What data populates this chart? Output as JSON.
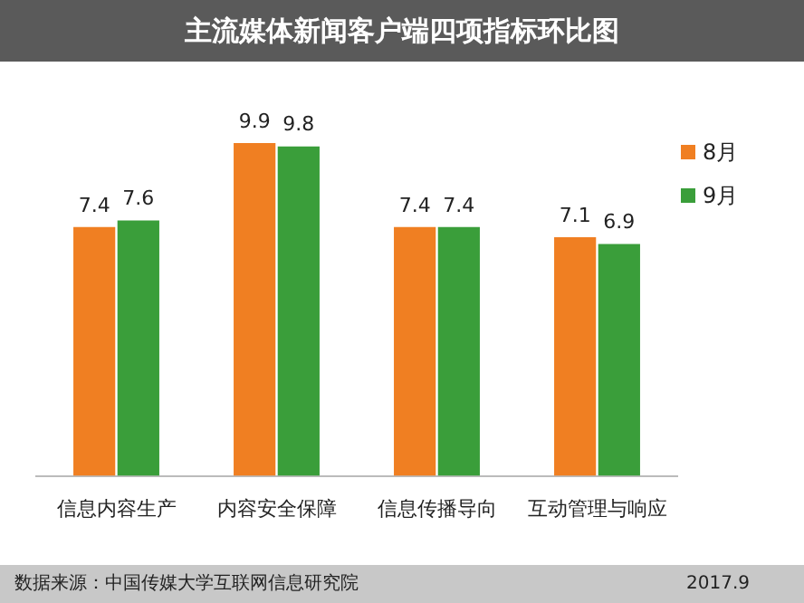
{
  "chart_data": {
    "type": "bar",
    "title": "主流媒体新闻客户端四项指标环比图",
    "categories": [
      "信息内容生产",
      "内容安全保障",
      "信息传播导向",
      "互动管理与响应"
    ],
    "series": [
      {
        "name": "8月",
        "color": "#f07f22",
        "values": [
          7.4,
          9.9,
          7.4,
          7.1
        ]
      },
      {
        "name": "9月",
        "color": "#3a9e3a",
        "values": [
          7.6,
          9.8,
          7.4,
          6.9
        ]
      }
    ],
    "data_labels": true,
    "legend": "top right",
    "grid": false,
    "tick_labels": "x",
    "annotations": [
      "数据来源：中国传媒大学互联网信息研究院",
      "2017.9"
    ]
  }
}
